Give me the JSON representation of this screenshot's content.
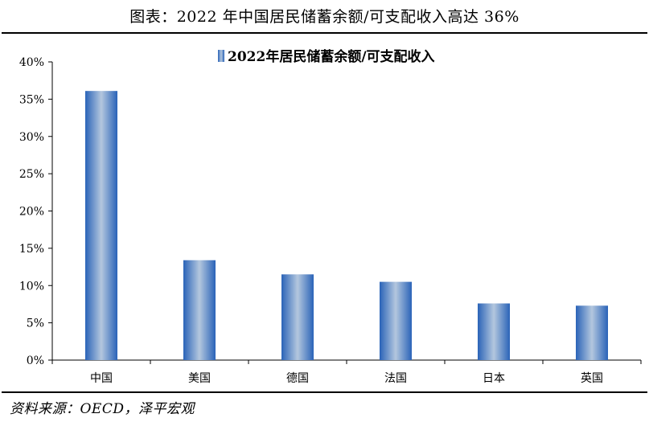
{
  "header": {
    "title": "图表：2022 年中国居民储蓄余额/可支配收入高达 36%"
  },
  "footer": {
    "source": "资料来源：OECD，泽平宏观"
  },
  "colors": {
    "bar_edge": "#2a63b8",
    "bar_center": "#b3c7de",
    "axis": "#000000"
  },
  "chart_data": {
    "type": "bar",
    "title": "",
    "xlabel": "",
    "ylabel": "",
    "categories": [
      "中国",
      "美国",
      "德国",
      "法国",
      "日本",
      "英国"
    ],
    "series": [
      {
        "name": "2022年居民储蓄余额/可支配收入",
        "values": [
          36.1,
          13.4,
          11.5,
          10.5,
          7.6,
          7.3
        ]
      }
    ],
    "ylim": [
      0,
      40
    ],
    "yticks": [
      0,
      5,
      10,
      15,
      20,
      25,
      30,
      35,
      40
    ],
    "ytick_labels": [
      "0%",
      "5%",
      "10%",
      "15%",
      "20%",
      "25%",
      "30%",
      "35%",
      "40%"
    ],
    "grid": false,
    "legend": "top-center"
  }
}
